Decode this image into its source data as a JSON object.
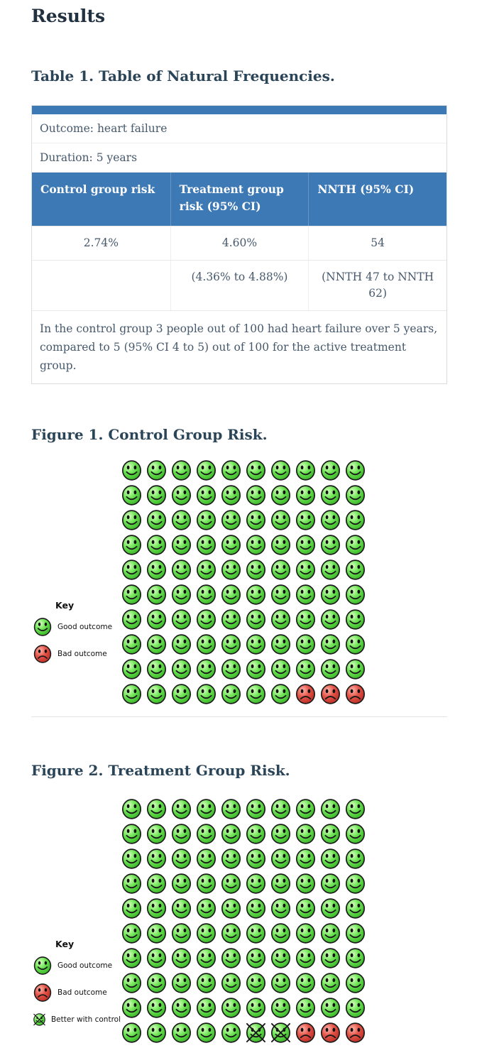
{
  "page": {
    "title": "Results"
  },
  "table1": {
    "heading": "Table 1. Table of Natural Frequencies.",
    "meta": [
      "Outcome: heart failure",
      "Duration: 5 years"
    ],
    "columns": [
      "Control group risk",
      "Treatment group risk (95% CI)",
      "NNTH (95% CI)"
    ],
    "rows": [
      [
        "2.74%",
        "4.60%",
        "54"
      ],
      [
        "",
        "(4.36% to 4.88%)",
        "(NNTH 47 to NNTH 62)"
      ]
    ],
    "footer": "In the control group 3 people out of 100 had heart failure over 5 years, compared to 5 (95% CI 4 to 5) out of 100 for the active treatment group."
  },
  "figure1": {
    "heading": "Figure 1. Control Group Risk.",
    "key": {
      "title": "Key",
      "items": [
        {
          "kind": "good",
          "label": "Good outcome"
        },
        {
          "kind": "bad",
          "label": "Bad outcome"
        }
      ]
    }
  },
  "figure2": {
    "heading": "Figure 2. Treatment Group Risk.",
    "key": {
      "title": "Key",
      "items": [
        {
          "kind": "good",
          "label": "Good outcome"
        },
        {
          "kind": "bad",
          "label": "Bad outcome"
        },
        {
          "kind": "crossed",
          "label": "Better with control"
        }
      ]
    }
  },
  "colors": {
    "accent_blue": "#3d79b5",
    "good_green": "#4ec93c",
    "bad_red": "#d8443c",
    "heading_text": "#2a4458",
    "body_text": "#46596c"
  },
  "chart_data": [
    {
      "type": "pictogram",
      "title": "Figure 1. Control Group Risk.",
      "rows": 10,
      "cols": 10,
      "total": 100,
      "series": [
        {
          "name": "Good outcome",
          "kind": "good",
          "value": 97
        },
        {
          "name": "Bad outcome",
          "kind": "bad",
          "value": 3
        }
      ]
    },
    {
      "type": "pictogram",
      "title": "Figure 2. Treatment Group Risk.",
      "rows": 10,
      "cols": 10,
      "total": 100,
      "series": [
        {
          "name": "Good outcome",
          "kind": "good",
          "value": 95
        },
        {
          "name": "Better with control",
          "kind": "crossed",
          "value": 2
        },
        {
          "name": "Bad outcome",
          "kind": "bad",
          "value": 3
        }
      ]
    }
  ]
}
